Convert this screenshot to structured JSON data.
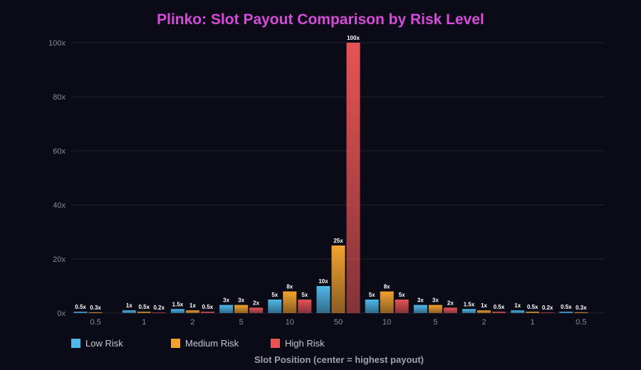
{
  "colors": {
    "background": "#0b0b17",
    "title": "#d64bd9",
    "grid": "#1f1f30",
    "low": "#4fb8e8",
    "medium": "#f2a22e",
    "high": "#e65454"
  },
  "chart_data": {
    "type": "bar",
    "title": "Plinko: Slot Payout Comparison by Risk Level",
    "xlabel": "Slot Position (center = highest payout)",
    "ylabel": "",
    "categories": [
      "0.5",
      "1",
      "2",
      "5",
      "10",
      "50",
      "10",
      "5",
      "2",
      "1",
      "0.5"
    ],
    "ylim": [
      0,
      100
    ],
    "yticks": [
      0,
      20,
      40,
      60,
      80,
      100
    ],
    "ytick_labels": [
      "0x",
      "20x",
      "40x",
      "60x",
      "80x",
      "100x"
    ],
    "grid": true,
    "legend_position": "bottom-left",
    "series": [
      {
        "name": "Low Risk",
        "color_key": "low",
        "values": [
          0.5,
          1,
          1.5,
          3,
          5,
          10,
          5,
          3,
          1.5,
          1,
          0.5
        ],
        "labels": [
          "0.5x",
          "1x",
          "1.5x",
          "3x",
          "5x",
          "10x",
          "5x",
          "3x",
          "1.5x",
          "1x",
          "0.5x"
        ]
      },
      {
        "name": "Medium Risk",
        "color_key": "medium",
        "values": [
          0.3,
          0.5,
          1,
          3,
          8,
          25,
          8,
          3,
          1,
          0.5,
          0.3
        ],
        "labels": [
          "0.3x",
          "0.5x",
          "1x",
          "3x",
          "8x",
          "25x",
          "8x",
          "3x",
          "1x",
          "0.5x",
          "0.3x"
        ]
      },
      {
        "name": "High Risk",
        "color_key": "high",
        "values": [
          0,
          0.2,
          0.5,
          2,
          5,
          100,
          5,
          2,
          0.5,
          0.2,
          0
        ],
        "labels": [
          "",
          "0.2x",
          "0.5x",
          "2x",
          "5x",
          "100x",
          "5x",
          "2x",
          "0.5x",
          "0.2x",
          ""
        ]
      }
    ]
  }
}
